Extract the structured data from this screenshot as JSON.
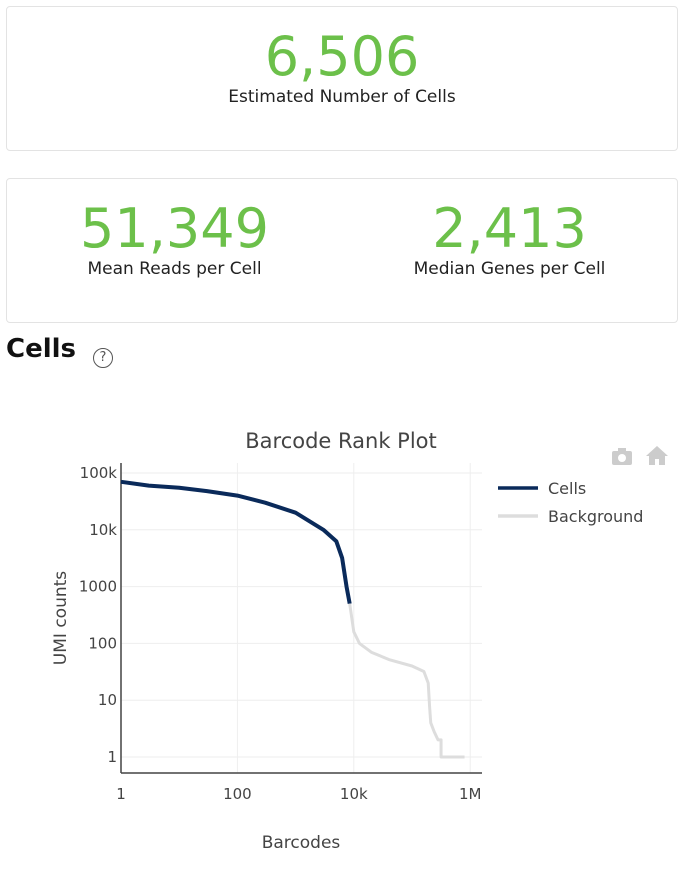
{
  "metrics": {
    "cells_value": "6,506",
    "cells_label": "Estimated Number of Cells",
    "reads_value": "51,349",
    "reads_label": "Mean Reads per Cell",
    "genes_value": "2,413",
    "genes_label": "Median Genes per Cell"
  },
  "section": {
    "title": "Cells",
    "help_icon": "?"
  },
  "toolbar": {
    "camera": "camera-icon",
    "home": "home-icon"
  },
  "chart_data": {
    "type": "line",
    "title": "Barcode Rank Plot",
    "xlabel": "Barcodes",
    "ylabel": "UMI counts",
    "xscale": "log",
    "yscale": "log",
    "xlim": [
      1,
      1000000
    ],
    "ylim": [
      0.6,
      140000
    ],
    "xticks": [
      {
        "v": 1,
        "t": "1"
      },
      {
        "v": 100,
        "t": "100"
      },
      {
        "v": 10000,
        "t": "10k"
      },
      {
        "v": 1000000,
        "t": "1M"
      }
    ],
    "yticks": [
      {
        "v": 100000,
        "t": "100k"
      },
      {
        "v": 10000,
        "t": "10k"
      },
      {
        "v": 1000,
        "t": "1000"
      },
      {
        "v": 100,
        "t": "100"
      },
      {
        "v": 10,
        "t": "10"
      },
      {
        "v": 1,
        "t": "1"
      }
    ],
    "legend": "right",
    "grid": true,
    "series": [
      {
        "name": "Cells",
        "color": "#0a2a5a",
        "x": [
          1,
          3,
          10,
          30,
          100,
          300,
          1000,
          3000,
          5000,
          6300,
          7500,
          8500
        ],
        "y": [
          70000,
          60000,
          55000,
          48000,
          40000,
          30000,
          20000,
          10000,
          6300,
          3200,
          1000,
          500
        ]
      },
      {
        "name": "Background",
        "color": "#dddddd",
        "x": [
          8500,
          10000,
          12500,
          20000,
          40000,
          100000,
          160000,
          190000,
          200000,
          210000,
          240000,
          280000,
          316000,
          316000,
          800000
        ],
        "y": [
          500,
          160,
          100,
          70,
          52,
          40,
          32,
          20,
          8,
          4,
          2.8,
          2,
          2,
          1,
          1
        ]
      }
    ]
  }
}
